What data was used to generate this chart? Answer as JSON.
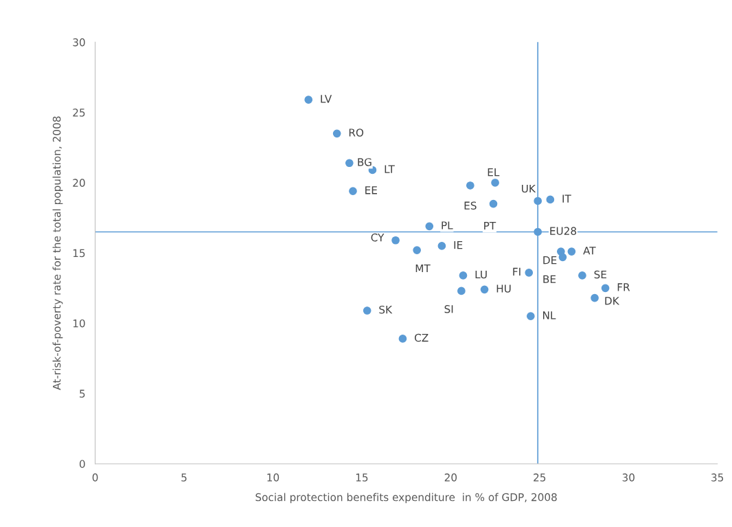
{
  "chart_data": {
    "type": "scatter",
    "xlabel": "Social protection benefits expenditure  in % of GDP, 2008",
    "ylabel": "At-risk-of-poverty rate for the total population, 2008",
    "xlim": [
      0,
      35
    ],
    "xticks": [
      0,
      5,
      10,
      15,
      20,
      25,
      30,
      35
    ],
    "ylim": [
      0,
      30
    ],
    "yticks": [
      0,
      5,
      10,
      15,
      20,
      25,
      30
    ],
    "grid": false,
    "legend": false,
    "marker": "circle",
    "series": [
      {
        "color": "#5b9bd5",
        "x": [
          12.0,
          13.6,
          14.3,
          15.6,
          14.5,
          21.1,
          22.5,
          22.4,
          24.9,
          25.6,
          18.8,
          24.9,
          16.9,
          18.1,
          19.5,
          26.8,
          26.2,
          26.3,
          24.4,
          27.4,
          28.7,
          28.1,
          20.7,
          21.9,
          20.6,
          15.3,
          17.3,
          24.5
        ],
        "values": [
          25.9,
          23.5,
          21.4,
          20.9,
          19.4,
          19.8,
          20.0,
          18.5,
          18.7,
          18.8,
          16.9,
          16.5,
          15.9,
          15.2,
          15.5,
          15.1,
          15.1,
          14.7,
          13.6,
          13.4,
          12.5,
          11.8,
          13.4,
          12.4,
          12.3,
          10.9,
          8.9,
          10.5
        ]
      }
    ],
    "ref_lines": [
      {
        "axis": "x",
        "value": 24.9,
        "color": "#5b9bd5"
      },
      {
        "axis": "y",
        "value": 16.5,
        "color": "#5b9bd5"
      }
    ],
    "annotations": [
      {
        "text": "LV",
        "x": 12.0,
        "y": 25.9
      },
      {
        "text": "RO",
        "x": 13.6,
        "y": 23.5
      },
      {
        "text": "BG",
        "x": 14.3,
        "y": 21.4
      },
      {
        "text": "LT",
        "x": 15.6,
        "y": 20.9
      },
      {
        "text": "EE",
        "x": 14.5,
        "y": 19.4
      },
      {
        "text": "ES",
        "x": 21.1,
        "y": 19.8
      },
      {
        "text": "EL",
        "x": 22.5,
        "y": 20.0
      },
      {
        "text": "PT",
        "x": 22.4,
        "y": 18.5
      },
      {
        "text": "UK",
        "x": 24.9,
        "y": 18.7
      },
      {
        "text": "IT",
        "x": 25.6,
        "y": 18.8
      },
      {
        "text": "PL",
        "x": 18.8,
        "y": 16.9
      },
      {
        "text": "EU28",
        "x": 24.9,
        "y": 16.5
      },
      {
        "text": "CY",
        "x": 16.9,
        "y": 15.9
      },
      {
        "text": "MT",
        "x": 18.1,
        "y": 15.2
      },
      {
        "text": "IE",
        "x": 19.5,
        "y": 15.5
      },
      {
        "text": "AT",
        "x": 26.8,
        "y": 15.1
      },
      {
        "text": "DE",
        "x": 26.2,
        "y": 15.1
      },
      {
        "text": "BE",
        "x": 26.3,
        "y": 14.7
      },
      {
        "text": "FI",
        "x": 24.4,
        "y": 13.6
      },
      {
        "text": "SE",
        "x": 27.4,
        "y": 13.4
      },
      {
        "text": "FR",
        "x": 28.7,
        "y": 12.5
      },
      {
        "text": "DK",
        "x": 28.1,
        "y": 11.8
      },
      {
        "text": "LU",
        "x": 20.7,
        "y": 13.4
      },
      {
        "text": "HU",
        "x": 21.9,
        "y": 12.4
      },
      {
        "text": "SI",
        "x": 20.6,
        "y": 12.3
      },
      {
        "text": "SK",
        "x": 15.3,
        "y": 10.9
      },
      {
        "text": "CZ",
        "x": 17.3,
        "y": 8.9
      },
      {
        "text": "NL",
        "x": 24.5,
        "y": 10.5
      }
    ]
  }
}
